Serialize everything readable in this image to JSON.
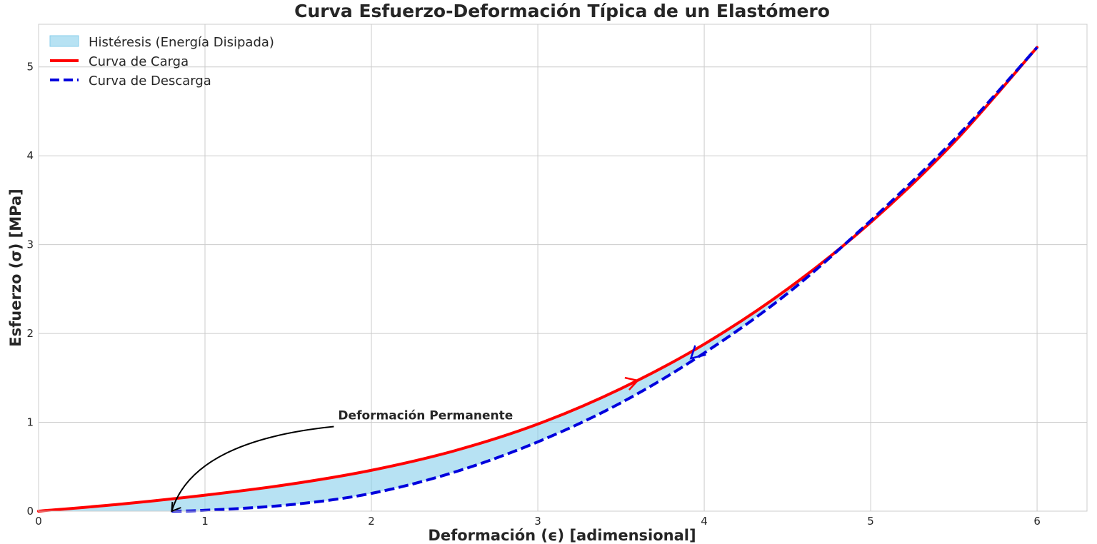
{
  "chart_data": {
    "type": "line",
    "title": "Curva Esfuerzo-Deformación Típica de un Elastómero",
    "xlabel": "Deformación (ϵ) [adimensional]",
    "ylabel": "Esfuerzo (σ) [MPa]",
    "xlim": [
      0,
      6.3
    ],
    "ylim": [
      0,
      5.48
    ],
    "xticks": [
      "0",
      "1",
      "2",
      "3",
      "4",
      "5",
      "6"
    ],
    "yticks": [
      "0",
      "1",
      "2",
      "3",
      "4",
      "5"
    ],
    "grid": true,
    "legend_position": "top-left",
    "legend": [
      {
        "label": "Histéresis (Energía Disipada)",
        "kind": "fill",
        "color": "#87CEEB"
      },
      {
        "label": "Curva de Carga",
        "kind": "line",
        "color": "#ff0000",
        "dash": false
      },
      {
        "label": "Curva de Descarga",
        "kind": "line",
        "color": "#0000dd",
        "dash": true
      }
    ],
    "series": [
      {
        "name": "Curva de Carga",
        "color": "#ff0000",
        "x": [
          0,
          0.5,
          1.0,
          1.5,
          2.0,
          2.5,
          3.0,
          3.5,
          4.0,
          4.5,
          5.0,
          5.5,
          6.0
        ],
        "y": [
          0,
          0.08,
          0.18,
          0.3,
          0.46,
          0.68,
          0.98,
          1.38,
          1.88,
          2.5,
          3.25,
          4.15,
          5.22
        ]
      },
      {
        "name": "Curva de Descarga",
        "color": "#0000dd",
        "x": [
          0.8,
          1.0,
          1.5,
          2.0,
          2.5,
          3.0,
          3.5,
          4.0,
          4.5,
          5.0,
          5.5,
          6.0
        ],
        "y": [
          0,
          0.01,
          0.07,
          0.2,
          0.44,
          0.78,
          1.22,
          1.78,
          2.45,
          3.27,
          4.18,
          5.22
        ]
      }
    ],
    "annotations": [
      {
        "text": "Deformación Permanente",
        "x": 1.8,
        "y": 1.0,
        "arrow_to": [
          0.8,
          0.0
        ]
      }
    ],
    "direction_arrows": [
      {
        "series": "Curva de Carga",
        "at": [
          3.6,
          1.47
        ],
        "color": "#ff0000"
      },
      {
        "series": "Curva de Descarga",
        "at": [
          3.92,
          1.72
        ],
        "color": "#0000dd"
      }
    ]
  }
}
